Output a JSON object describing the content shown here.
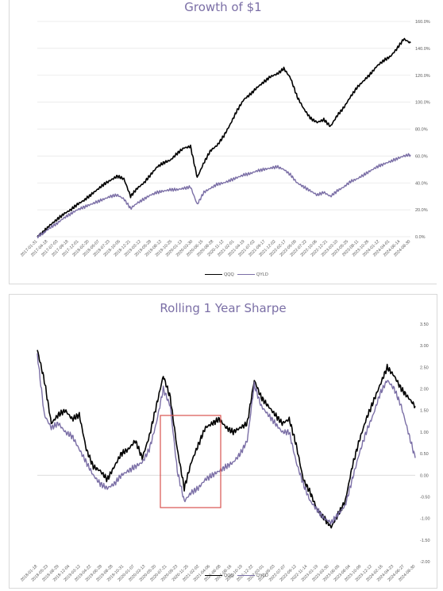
{
  "chart_data": [
    {
      "type": "line",
      "title": "Growth of $1",
      "xlabel": "",
      "ylabel": "",
      "ylim": [
        0,
        160
      ],
      "y_unit": "%",
      "y_ticks": [
        "0.0%",
        "20.0%",
        "40.0%",
        "60.0%",
        "80.0%",
        "100.0%",
        "120.0%",
        "140.0%",
        "160.0%"
      ],
      "x_tick_labels": [
        "2017-01-31",
        "2017-04-18",
        "2017-07-03",
        "2017-09-18",
        "2017-12-01",
        "2018-02-20",
        "2018-05-07",
        "2018-07-23",
        "2018-10-05",
        "2018-12-21",
        "2019-03-12",
        "2019-05-28",
        "2019-08-12",
        "2019-10-25",
        "2020-01-13",
        "2020-03-30",
        "2020-06-15",
        "2020-08-28",
        "2020-11-12",
        "2021-02-01",
        "2021-04-19",
        "2021-07-02",
        "2021-09-17",
        "2021-12-02",
        "2022-02-17",
        "2022-05-09",
        "2022-07-22",
        "2022-10-06",
        "2022-12-21",
        "2023-03-10",
        "2023-05-25",
        "2023-08-11",
        "2023-10-26",
        "2024-01-12",
        "2024-04-01",
        "2024-06-14",
        "2024-08-30"
      ],
      "grid": true,
      "legend_position": "bottom-right",
      "series": [
        {
          "name": "QQQ",
          "color": "#000000",
          "values": [
            0,
            4,
            9,
            13,
            17,
            20,
            24,
            27,
            31,
            35,
            39,
            42,
            45,
            43,
            30,
            36,
            40,
            46,
            52,
            55,
            57,
            62,
            66,
            67,
            44,
            55,
            64,
            68,
            75,
            84,
            94,
            102,
            106,
            111,
            115,
            119,
            121,
            125,
            118,
            104,
            95,
            88,
            85,
            87,
            82,
            90,
            96,
            104,
            111,
            116,
            121,
            127,
            131,
            134,
            140,
            147,
            144
          ]
        },
        {
          "name": "QYLD",
          "color": "#7b6fa6",
          "values": [
            0,
            3,
            7,
            10,
            14,
            17,
            20,
            22,
            24,
            26,
            28,
            30,
            31,
            28,
            21,
            25,
            28,
            31,
            33,
            34,
            35,
            35,
            36,
            37,
            24,
            33,
            36,
            39,
            40,
            42,
            44,
            46,
            47,
            49,
            50,
            51,
            52,
            50,
            46,
            40,
            37,
            34,
            31,
            33,
            30,
            34,
            37,
            41,
            43,
            46,
            49,
            52,
            54,
            56,
            58,
            60,
            61
          ]
        }
      ]
    },
    {
      "type": "line",
      "title": "Rolling 1 Year Sharpe",
      "xlabel": "",
      "ylabel": "",
      "ylim": [
        -2.0,
        3.5
      ],
      "y_ticks": [
        "-2.00",
        "-1.50",
        "-1.00",
        "-0.50",
        "0.00",
        "0.50",
        "1.00",
        "1.50",
        "2.00",
        "2.50",
        "3.00",
        "3.50"
      ],
      "x_tick_labels": [
        "2018-01-18",
        "2018-05-23",
        "2018-08-29",
        "2018-12-04",
        "2019-03-12",
        "2019-04-22",
        "2019-06-28",
        "2019-08-28",
        "2019-10-31",
        "2020-01-07",
        "2020-03-13",
        "2020-05-20",
        "2020-07-21",
        "2020-09-23",
        "2020-11-25",
        "2021-02-02",
        "2021-04-06",
        "2021-06-08",
        "2021-08-16",
        "2021-10-19",
        "2021-12-22",
        "2022-03-01",
        "2022-05-03",
        "2022-07-07",
        "2022-09-12",
        "2022-11-14",
        "2023-01-19",
        "2023-03-30",
        "2023-06-05",
        "2023-08-04",
        "2023-10-09",
        "2023-12-12",
        "2024-02-16",
        "2024-04-23",
        "2024-06-27",
        "2024-08-30"
      ],
      "grid": false,
      "legend_position": "bottom-right",
      "series": [
        {
          "name": "QQQ",
          "color": "#000000",
          "values": [
            2.9,
            2.2,
            1.2,
            1.4,
            1.5,
            1.3,
            1.4,
            0.6,
            0.2,
            0.1,
            -0.1,
            0.2,
            0.5,
            0.6,
            0.8,
            0.4,
            0.9,
            1.6,
            2.3,
            1.8,
            0.6,
            -0.3,
            0.3,
            0.7,
            1.1,
            1.2,
            1.3,
            1.1,
            1.0,
            1.1,
            1.2,
            2.2,
            1.8,
            1.6,
            1.4,
            1.2,
            1.3,
            0.7,
            -0.1,
            -0.4,
            -0.8,
            -1.0,
            -1.2,
            -0.9,
            -0.6,
            0.2,
            0.8,
            1.3,
            1.7,
            2.1,
            2.5,
            2.3,
            2.0,
            1.8,
            1.6
          ]
        },
        {
          "name": "QYLD",
          "color": "#7b6fa6",
          "values": [
            2.8,
            1.4,
            1.1,
            1.2,
            1.0,
            0.9,
            0.6,
            0.3,
            0.0,
            -0.2,
            -0.3,
            -0.2,
            0.0,
            0.1,
            0.2,
            0.3,
            0.6,
            1.2,
            2.0,
            1.6,
            0.1,
            -0.6,
            -0.4,
            -0.3,
            -0.1,
            0.0,
            0.1,
            0.2,
            0.3,
            0.5,
            0.8,
            2.1,
            1.6,
            1.4,
            1.2,
            1.0,
            1.0,
            0.3,
            -0.2,
            -0.6,
            -0.8,
            -1.0,
            -1.1,
            -0.9,
            -0.7,
            -0.1,
            0.5,
            1.0,
            1.4,
            1.9,
            2.2,
            2.0,
            1.6,
            1.0,
            0.4
          ]
        }
      ]
    }
  ]
}
